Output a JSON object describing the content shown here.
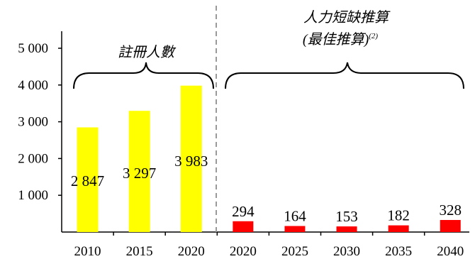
{
  "chart_data": {
    "type": "bar",
    "categories": [
      "2010",
      "2015",
      "2020",
      "2020",
      "2025",
      "2030",
      "2035",
      "2040"
    ],
    "yticks": [
      "1 000",
      "2 000",
      "3 000",
      "4 000",
      "5 000"
    ],
    "ylim": [
      0,
      5000
    ],
    "grid": false,
    "series": [
      {
        "name": "註冊人數",
        "color": "#ffff00",
        "values": [
          2847,
          3297,
          3983,
          null,
          null,
          null,
          null,
          null
        ],
        "labels": [
          "2 847",
          "3 297",
          "3 983",
          "",
          "",
          "",
          "",
          ""
        ]
      },
      {
        "name": "人力短缺推算 (最佳推算)(2)",
        "color": "#ff0000",
        "values": [
          null,
          null,
          null,
          294,
          164,
          153,
          182,
          328
        ],
        "labels": [
          "",
          "",
          "",
          "294",
          "164",
          "153",
          "182",
          "328"
        ]
      }
    ],
    "groups": [
      {
        "title_line1": "註冊人數",
        "title_line2": ""
      },
      {
        "title_line1": "人力短缺推算",
        "title_line2": "(最佳推算)",
        "superscript": "(2)"
      }
    ]
  }
}
